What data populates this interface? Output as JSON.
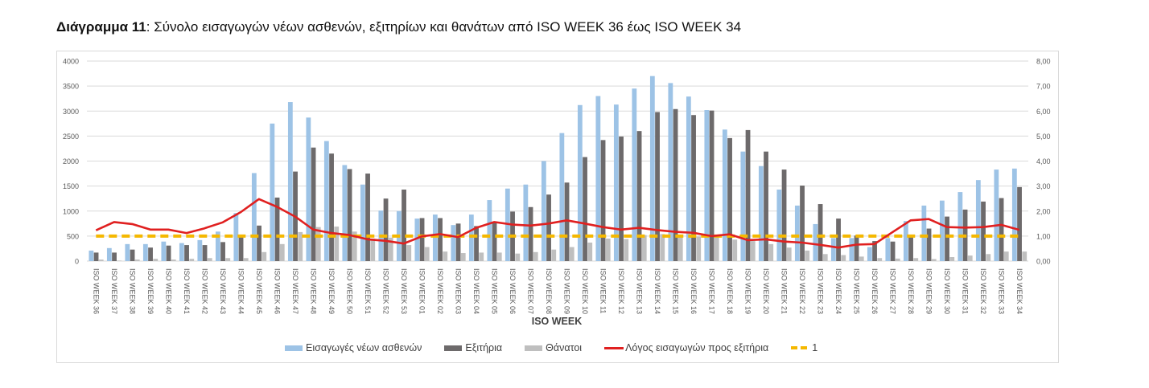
{
  "caption": {
    "prefix": "Διάγραμμα 11",
    "text": ": Σύνολο εισαγωγών νέων ασθενών, εξιτηρίων και θανάτων από ISO WEEK 36 έως ISO WEEK 34"
  },
  "chart_data": {
    "type": "bar",
    "title": "Διάγραμμα 11: Σύνολο εισαγωγών νέων ασθενών, εξιτηρίων και θανάτων από ISO WEEK 36 έως ISO WEEK 34",
    "xlabel": "ISO WEEK",
    "ylabel": "",
    "ylim": [
      0,
      4000
    ],
    "y2lim": [
      0,
      8
    ],
    "yticks": [
      "0",
      "500",
      "1000",
      "1500",
      "2000",
      "2500",
      "3000",
      "3500",
      "4000"
    ],
    "y2ticks": [
      "0,00",
      "1,00",
      "2,00",
      "3,00",
      "4,00",
      "5,00",
      "6,00",
      "7,00",
      "8,00"
    ],
    "grid": true,
    "legend_position": "bottom",
    "categories": [
      "ISO WEEK 36",
      "ISO WEEK 37",
      "ISO WEEK 38",
      "ISO WEEK 39",
      "ISO WEEK 40",
      "ISO WEEK 41",
      "ISO WEEK 42",
      "ISO WEEK 43",
      "ISO WEEK 44",
      "ISO WEEK 45",
      "ISO WEEK 46",
      "ISO WEEK 47",
      "ISO WEEK 48",
      "ISO WEEK 49",
      "ISO WEEK 50",
      "ISO WEEK 51",
      "ISO WEEK 52",
      "ISO WEEK 53",
      "ISO WEEK 01",
      "ISO WEEK 02",
      "ISO WEEK 03",
      "ISO WEEK 04",
      "ISO WEEK 05",
      "ISO WEEK 06",
      "ISO WEEK 07",
      "ISO WEEK 08",
      "ISO WEEK 09",
      "ISO WEEK 10",
      "ISO WEEK 11",
      "ISO WEEK 12",
      "ISO WEEK 13",
      "ISO WEEK 14",
      "ISO WEEK 15",
      "ISO WEEK 16",
      "ISO WEEK 17",
      "ISO WEEK 18",
      "ISO WEEK 19",
      "ISO WEEK 20",
      "ISO WEEK 21",
      "ISO WEEK 22",
      "ISO WEEK 23",
      "ISO WEEK 24",
      "ISO WEEK 25",
      "ISO WEEK 26",
      "ISO WEEK 27",
      "ISO WEEK 28",
      "ISO WEEK 29",
      "ISO WEEK 30",
      "ISO WEEK 31",
      "ISO WEEK 32",
      "ISO WEEK 33",
      "ISO WEEK 34"
    ],
    "series": [
      {
        "name": "Εισαγωγές νέων ασθενών",
        "type": "bar",
        "axis": "left",
        "color": "#9dc3e6",
        "values": [
          210,
          260,
          340,
          340,
          390,
          360,
          420,
          590,
          960,
          1760,
          2750,
          3180,
          2870,
          2400,
          1920,
          1530,
          1010,
          1000,
          850,
          930,
          720,
          930,
          1220,
          1450,
          1530,
          2000,
          2560,
          3120,
          3300,
          3130,
          3450,
          3700,
          3560,
          3290,
          3020,
          2630,
          2190,
          1900,
          1430,
          1110,
          740,
          460,
          460,
          280,
          460,
          800,
          1110,
          1210,
          1380,
          1620,
          1830,
          1850
        ]
      },
      {
        "name": "Εξιτήρια",
        "type": "bar",
        "axis": "left",
        "color": "#6d6a6b",
        "values": [
          170,
          170,
          230,
          270,
          310,
          320,
          320,
          380,
          490,
          710,
          1270,
          1790,
          2270,
          2150,
          1840,
          1750,
          1250,
          1430,
          860,
          860,
          750,
          700,
          780,
          990,
          1080,
          1330,
          1570,
          2080,
          2420,
          2490,
          2600,
          2980,
          3040,
          2920,
          3010,
          2460,
          2620,
          2190,
          1830,
          1510,
          1140,
          850,
          510,
          400,
          390,
          490,
          650,
          890,
          1030,
          1190,
          1260,
          1480
        ]
      },
      {
        "name": "Θάνατοι",
        "type": "bar",
        "axis": "left",
        "color": "#bfbfbf",
        "values": [
          30,
          10,
          30,
          45,
          30,
          45,
          60,
          60,
          60,
          180,
          340,
          580,
          680,
          690,
          590,
          450,
          470,
          320,
          280,
          190,
          160,
          170,
          170,
          150,
          180,
          230,
          280,
          370,
          450,
          440,
          520,
          540,
          530,
          490,
          500,
          430,
          400,
          340,
          270,
          210,
          140,
          120,
          90,
          60,
          50,
          60,
          40,
          80,
          110,
          140,
          190,
          190
        ]
      },
      {
        "name": "Λόγος εισαγωγών προς εξιτήρια",
        "type": "line",
        "axis": "right",
        "color": "#e02020",
        "values": [
          1.23,
          1.56,
          1.48,
          1.26,
          1.26,
          1.12,
          1.31,
          1.55,
          1.96,
          2.48,
          2.17,
          1.78,
          1.26,
          1.12,
          1.04,
          0.87,
          0.81,
          0.7,
          0.99,
          1.08,
          0.96,
          1.33,
          1.56,
          1.46,
          1.42,
          1.5,
          1.63,
          1.5,
          1.36,
          1.26,
          1.33,
          1.24,
          1.17,
          1.13,
          1.0,
          1.07,
          0.84,
          0.87,
          0.78,
          0.74,
          0.65,
          0.54,
          0.66,
          0.68,
          1.16,
          1.63,
          1.68,
          1.36,
          1.34,
          1.36,
          1.45,
          1.25
        ]
      },
      {
        "name": "1",
        "type": "line-dashed",
        "axis": "right",
        "color": "#f5b800",
        "values": [
          1,
          1,
          1,
          1,
          1,
          1,
          1,
          1,
          1,
          1,
          1,
          1,
          1,
          1,
          1,
          1,
          1,
          1,
          1,
          1,
          1,
          1,
          1,
          1,
          1,
          1,
          1,
          1,
          1,
          1,
          1,
          1,
          1,
          1,
          1,
          1,
          1,
          1,
          1,
          1,
          1,
          1,
          1,
          1,
          1,
          1,
          1,
          1,
          1,
          1,
          1,
          1
        ]
      }
    ]
  }
}
